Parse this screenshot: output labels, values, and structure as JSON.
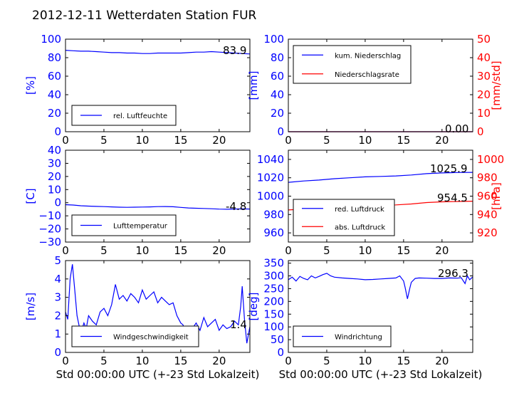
{
  "title": "2012-12-11 Wetterdaten Station FUR",
  "colors": {
    "blue": "#0000ff",
    "red": "#ff0000",
    "black": "#000000"
  },
  "chart_data": [
    {
      "type": "line",
      "id": "humidity",
      "xlim": [
        0,
        24
      ],
      "xticks": [
        "0",
        "5",
        "10",
        "15",
        "20"
      ],
      "xlabel": "",
      "ylim": [
        0,
        100
      ],
      "yticks": [
        "0",
        "20",
        "40",
        "60",
        "80",
        "100"
      ],
      "ylabel": "[%]",
      "legend": {
        "placement": "lower-left",
        "entries": [
          "rel. Luftfeuchte"
        ]
      },
      "current_value": "83.9",
      "series": [
        {
          "name": "rel. Luftfeuchte",
          "axis": "left",
          "color": "#0000ff",
          "x": [
            0,
            1,
            2,
            3,
            4,
            5,
            6,
            7,
            8,
            9,
            10,
            11,
            12,
            13,
            14,
            15,
            16,
            17,
            18,
            19,
            20,
            21,
            22,
            23,
            24
          ],
          "y": [
            88,
            87.5,
            87,
            87,
            86.5,
            86,
            85.5,
            85.5,
            85,
            85,
            84.5,
            84.5,
            85,
            85,
            85,
            85,
            85.5,
            86,
            86,
            86.5,
            86,
            85.5,
            85,
            84.5,
            84
          ]
        }
      ]
    },
    {
      "type": "line",
      "id": "precipitation",
      "xlim": [
        0,
        24
      ],
      "xticks": [
        "0",
        "5",
        "10",
        "15",
        "20"
      ],
      "xlabel": "",
      "ylim": [
        0,
        100
      ],
      "yticks": [
        "0",
        "20",
        "40",
        "60",
        "80",
        "100"
      ],
      "ylabel": "[mm]",
      "y2lim": [
        0,
        50
      ],
      "y2ticks": [
        "0",
        "10",
        "20",
        "30",
        "40",
        "50"
      ],
      "y2label": "[mm/std]",
      "legend": {
        "placement": "upper-left",
        "entries": [
          "kum. Niederschlag",
          "Niederschlagsrate"
        ]
      },
      "current_value": "0.00",
      "series": [
        {
          "name": "kum. Niederschlag",
          "axis": "left",
          "color": "#0000ff",
          "x": [
            0,
            24
          ],
          "y": [
            0,
            0
          ]
        },
        {
          "name": "Niederschlagsrate",
          "axis": "right",
          "color": "#ff0000",
          "x": [
            0,
            24
          ],
          "y": [
            0,
            0
          ]
        }
      ]
    },
    {
      "type": "line",
      "id": "temperature",
      "xlim": [
        0,
        24
      ],
      "xticks": [
        "0",
        "5",
        "10",
        "15",
        "20"
      ],
      "xlabel": "",
      "ylim": [
        -30,
        40
      ],
      "yticks": [
        "−30",
        "−20",
        "−10",
        "0",
        "10",
        "20",
        "30",
        "40"
      ],
      "ylabel": "[C]",
      "legend": {
        "placement": "lower-left",
        "entries": [
          "Lufttemperatur"
        ]
      },
      "current_value": "-4.8",
      "series": [
        {
          "name": "Lufttemperatur",
          "axis": "left",
          "color": "#0000ff",
          "x": [
            0,
            1,
            2,
            3,
            4,
            5,
            6,
            7,
            8,
            9,
            10,
            11,
            12,
            13,
            14,
            15,
            16,
            17,
            18,
            19,
            20,
            21,
            22,
            23,
            24
          ],
          "y": [
            -1.5,
            -1.8,
            -2.3,
            -2.6,
            -2.8,
            -3.0,
            -3.2,
            -3.4,
            -3.5,
            -3.4,
            -3.3,
            -3.2,
            -3.0,
            -2.9,
            -3.1,
            -3.6,
            -4.0,
            -4.2,
            -4.4,
            -4.6,
            -4.9,
            -5.0,
            -4.8,
            -4.7,
            -4.8
          ]
        }
      ]
    },
    {
      "type": "line",
      "id": "pressure",
      "xlim": [
        0,
        24
      ],
      "xticks": [
        "0",
        "5",
        "10",
        "15",
        "20"
      ],
      "xlabel": "",
      "ylim": [
        950,
        1050
      ],
      "yticks": [
        "960",
        "980",
        "1000",
        "1020",
        "1040"
      ],
      "ylabel": "",
      "y2lim": [
        910,
        1010
      ],
      "y2ticks": [
        "920",
        "940",
        "960",
        "980",
        "1000"
      ],
      "y2label": "[hPa]",
      "legend": {
        "placement": "lower-left",
        "entries": [
          "red. Luftdruck",
          "abs. Luftdruck"
        ]
      },
      "current_values": [
        "1025.9",
        "954.5"
      ],
      "series": [
        {
          "name": "red. Luftdruck",
          "axis": "left",
          "color": "#0000ff",
          "x": [
            0,
            2,
            4,
            6,
            8,
            10,
            12,
            14,
            16,
            18,
            20,
            22,
            24
          ],
          "y": [
            1015,
            1016.5,
            1017.5,
            1019,
            1020,
            1021,
            1021.5,
            1022,
            1023,
            1024.5,
            1025.3,
            1025.7,
            1025.9
          ]
        },
        {
          "name": "abs. Luftdruck",
          "axis": "right",
          "color": "#ff0000",
          "x": [
            0,
            2,
            4,
            6,
            8,
            10,
            12,
            14,
            16,
            18,
            20,
            22,
            24
          ],
          "y": [
            945,
            946,
            946.5,
            947.5,
            948.5,
            949.5,
            950,
            950.5,
            951.5,
            953,
            953.8,
            954.2,
            954.5
          ]
        }
      ]
    },
    {
      "type": "line",
      "id": "windspeed",
      "xlim": [
        0,
        24
      ],
      "xticks": [
        "0",
        "5",
        "10",
        "15",
        "20"
      ],
      "xlabel": "Std 00:00:00 UTC (+-23 Std Lokalzeit)",
      "ylim": [
        0,
        5
      ],
      "yticks": [
        "0",
        "1",
        "2",
        "3",
        "4",
        "5"
      ],
      "ylabel": "[m/s]",
      "legend": {
        "placement": "lower-left",
        "entries": [
          "Windgeschwindigkeit"
        ]
      },
      "current_value": "1.4",
      "series": [
        {
          "name": "Windgeschwindigkeit",
          "axis": "left",
          "color": "#0000ff",
          "x": [
            0,
            0.3,
            0.6,
            0.9,
            1.2,
            1.5,
            1.8,
            2.1,
            2.4,
            2.7,
            3,
            3.5,
            4,
            4.5,
            5,
            5.5,
            6,
            6.5,
            7,
            7.5,
            8,
            8.5,
            9,
            9.5,
            10,
            10.5,
            11,
            11.5,
            12,
            12.5,
            13,
            13.5,
            14,
            14.5,
            15,
            15.3,
            15.6,
            16,
            16.5,
            17,
            17.5,
            18,
            18.5,
            19,
            19.5,
            20,
            20.5,
            21,
            21.5,
            22,
            22.5,
            22.8,
            23,
            23.3,
            23.6,
            24
          ],
          "y": [
            2.2,
            1.8,
            4.0,
            4.8,
            3.4,
            2.0,
            1.4,
            1.2,
            1.6,
            1.3,
            2.0,
            1.7,
            1.5,
            2.2,
            2.4,
            2.0,
            2.6,
            3.7,
            2.9,
            3.1,
            2.8,
            3.2,
            3.0,
            2.7,
            3.4,
            2.9,
            3.1,
            3.3,
            2.7,
            3.0,
            2.8,
            2.6,
            2.7,
            2.0,
            1.6,
            1.5,
            1.0,
            0.8,
            1.3,
            1.6,
            1.2,
            1.9,
            1.4,
            1.6,
            1.8,
            1.2,
            1.5,
            1.3,
            1.4,
            1.7,
            1.5,
            2.5,
            3.6,
            1.8,
            0.5,
            1.4
          ]
        }
      ]
    },
    {
      "type": "line",
      "id": "winddirection",
      "xlim": [
        0,
        24
      ],
      "xticks": [
        "0",
        "5",
        "10",
        "15",
        "20"
      ],
      "xlabel": "Std 00:00:00 UTC (+-23 Std Lokalzeit)",
      "ylim": [
        0,
        360
      ],
      "yticks": [
        "0",
        "50",
        "100",
        "150",
        "200",
        "250",
        "300",
        "350"
      ],
      "ylabel": "[deg]",
      "legend": {
        "placement": "lower-left",
        "entries": [
          "Windrichtung"
        ]
      },
      "current_value": "296.3",
      "series": [
        {
          "name": "Windrichtung",
          "axis": "left",
          "color": "#0000ff",
          "x": [
            0,
            0.5,
            1,
            1.5,
            2,
            2.5,
            3,
            3.5,
            4,
            4.5,
            5,
            5.5,
            6,
            7,
            8,
            9,
            10,
            11,
            12,
            13,
            14,
            14.5,
            15,
            15.2,
            15.5,
            15.8,
            16,
            16.5,
            17,
            18,
            19,
            20,
            21,
            22,
            22.5,
            23,
            23.3,
            23.6,
            24
          ],
          "y": [
            285,
            295,
            280,
            298,
            290,
            285,
            300,
            292,
            298,
            305,
            310,
            300,
            295,
            292,
            290,
            288,
            285,
            286,
            288,
            290,
            292,
            300,
            280,
            255,
            210,
            250,
            275,
            290,
            292,
            291,
            290,
            290,
            292,
            291,
            293,
            270,
            300,
            285,
            296
          ]
        }
      ]
    }
  ]
}
